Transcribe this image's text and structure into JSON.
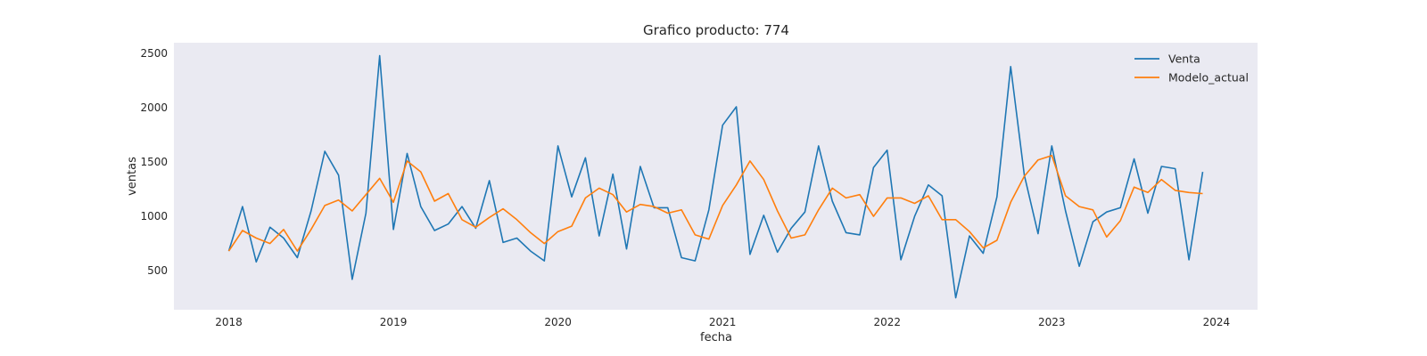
{
  "chart_data": {
    "type": "line",
    "title": "Grafico producto: 774",
    "xlabel": "fecha",
    "ylabel": "ventas",
    "x_ticks": [
      "2018",
      "2019",
      "2020",
      "2021",
      "2022",
      "2023",
      "2024"
    ],
    "y_ticks": [
      500,
      1000,
      1500,
      2000,
      2500
    ],
    "xlim": [
      "2017-09",
      "2024-04"
    ],
    "ylim": [
      140,
      2600
    ],
    "grid": false,
    "legend": "top-right",
    "x": [
      "2018-01",
      "2018-02",
      "2018-03",
      "2018-04",
      "2018-05",
      "2018-06",
      "2018-07",
      "2018-08",
      "2018-09",
      "2018-10",
      "2018-11",
      "2018-12",
      "2019-01",
      "2019-02",
      "2019-03",
      "2019-04",
      "2019-05",
      "2019-06",
      "2019-07",
      "2019-08",
      "2019-09",
      "2019-10",
      "2019-11",
      "2019-12",
      "2020-01",
      "2020-02",
      "2020-03",
      "2020-04",
      "2020-05",
      "2020-06",
      "2020-07",
      "2020-08",
      "2020-09",
      "2020-10",
      "2020-11",
      "2020-12",
      "2021-01",
      "2021-02",
      "2021-03",
      "2021-04",
      "2021-05",
      "2021-06",
      "2021-07",
      "2021-08",
      "2021-09",
      "2021-10",
      "2021-11",
      "2021-12",
      "2022-01",
      "2022-02",
      "2022-03",
      "2022-04",
      "2022-05",
      "2022-06",
      "2022-07",
      "2022-08",
      "2022-09",
      "2022-10",
      "2022-11",
      "2022-12",
      "2023-01",
      "2023-02",
      "2023-03",
      "2023-04",
      "2023-05",
      "2023-06",
      "2023-07",
      "2023-08",
      "2023-09",
      "2023-10",
      "2023-11",
      "2023-12"
    ],
    "series": [
      {
        "name": "Venta",
        "color": "#1f77b4",
        "values": [
          680,
          1090,
          580,
          900,
          800,
          620,
          1050,
          1600,
          1380,
          420,
          1030,
          2480,
          880,
          1580,
          1090,
          870,
          930,
          1090,
          890,
          1330,
          760,
          800,
          680,
          590,
          1650,
          1180,
          1540,
          820,
          1390,
          700,
          1460,
          1080,
          1080,
          620,
          590,
          1060,
          1840,
          2010,
          650,
          1010,
          670,
          890,
          1040,
          1650,
          1140,
          850,
          830,
          1450,
          1610,
          600,
          1000,
          1290,
          1190,
          250,
          820,
          660,
          1180,
          2380,
          1380,
          840,
          1650,
          1050,
          540,
          950,
          1040,
          1080,
          1530,
          1030,
          1460,
          1440,
          600,
          1410
        ]
      },
      {
        "name": "Modelo_actual",
        "color": "#ff7f0e",
        "values": [
          680,
          870,
          800,
          750,
          880,
          680,
          880,
          1100,
          1150,
          1050,
          1200,
          1350,
          1130,
          1510,
          1410,
          1140,
          1210,
          970,
          900,
          990,
          1070,
          970,
          850,
          750,
          860,
          910,
          1170,
          1260,
          1200,
          1040,
          1110,
          1090,
          1030,
          1060,
          830,
          790,
          1100,
          1290,
          1510,
          1340,
          1050,
          800,
          830,
          1060,
          1260,
          1170,
          1200,
          1000,
          1170,
          1170,
          1120,
          1190,
          970,
          970,
          860,
          710,
          780,
          1130,
          1370,
          1520,
          1560,
          1190,
          1090,
          1060,
          810,
          960,
          1270,
          1220,
          1340,
          1240,
          1220,
          1210
        ]
      }
    ]
  }
}
